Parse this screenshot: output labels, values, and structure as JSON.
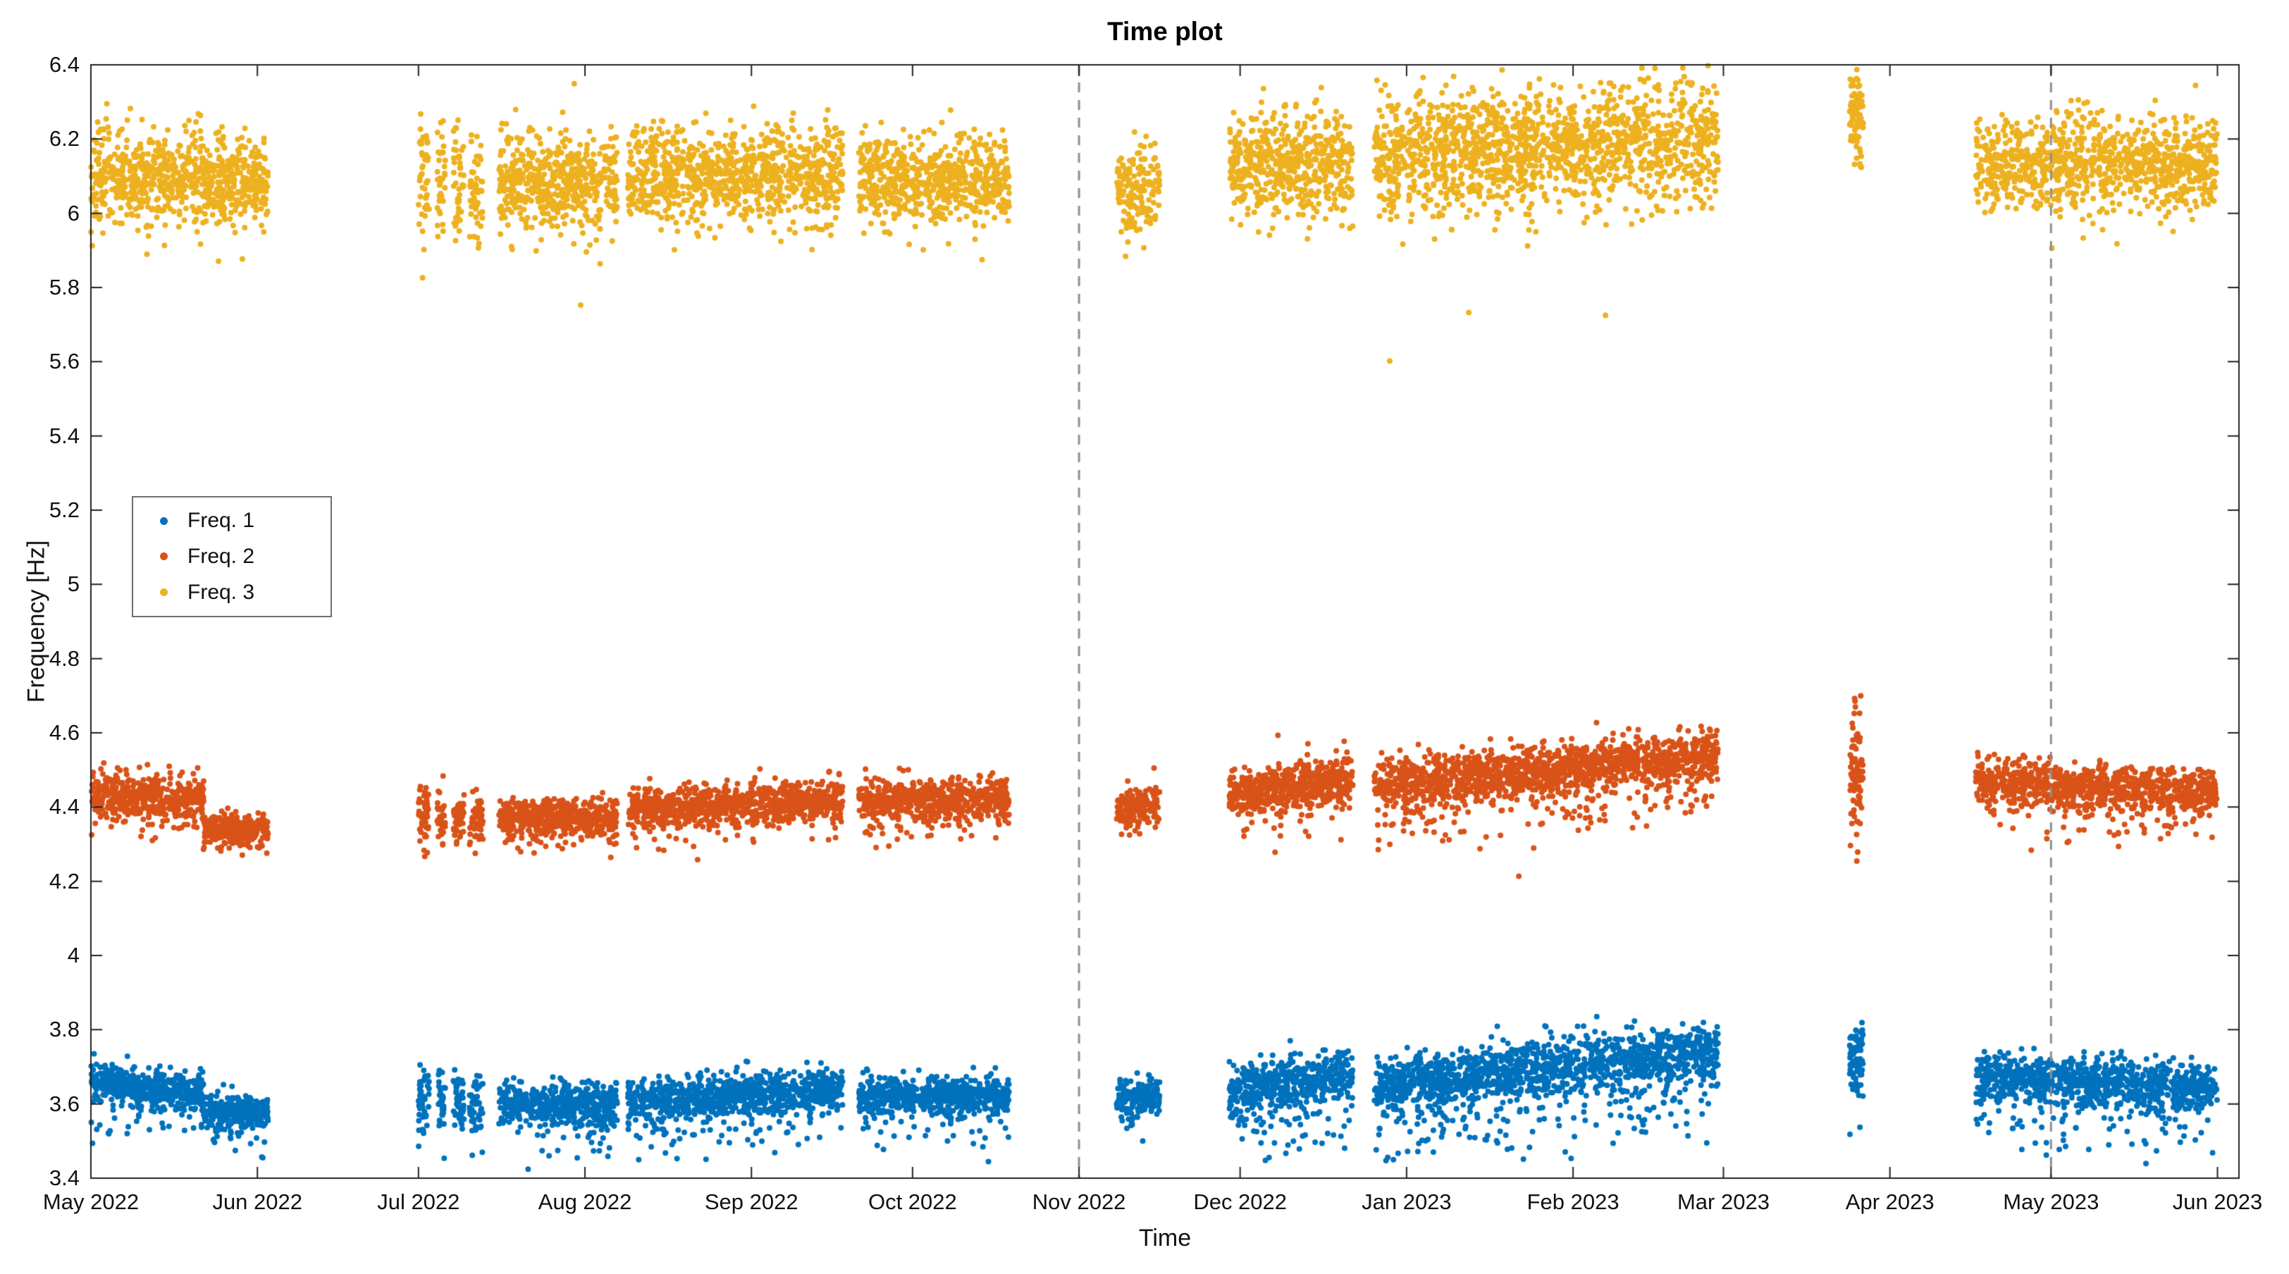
{
  "chart_data": {
    "type": "scatter",
    "title": "Time plot",
    "xlabel": "Time",
    "ylabel": "Frequency [Hz]",
    "background": "#ffffff",
    "grid": false,
    "x_axis": {
      "min": 0,
      "max": 400,
      "unit": "days since 2022-05-01",
      "tick_days": [
        0,
        31,
        61,
        92,
        123,
        153,
        184,
        214,
        245,
        276,
        304,
        335,
        365,
        396
      ],
      "tick_labels": [
        "May 2022",
        "Jun 2022",
        "Jul 2022",
        "Aug 2022",
        "Sep 2022",
        "Oct 2022",
        "Nov 2022",
        "Dec 2022",
        "Jan 2023",
        "Feb 2023",
        "Mar 2023",
        "Apr 2023",
        "May 2023",
        "Jun 2023"
      ]
    },
    "y_axis": {
      "min": 3.4,
      "max": 6.4,
      "tick_step": 0.2,
      "tick_labels": [
        "3.4",
        "3.6",
        "3.8",
        "4",
        "4.2",
        "4.4",
        "4.6",
        "4.8",
        "5",
        "5.2",
        "5.4",
        "5.6",
        "5.8",
        "6",
        "6.2",
        "6.4"
      ]
    },
    "vlines": {
      "style": "dashed",
      "color": "#8f8f8f",
      "days": [
        184,
        365
      ],
      "dates": [
        "2022-11-01",
        "2023-05-01"
      ]
    },
    "legend": {
      "position": "upper-left-inside",
      "entries": [
        "Freq. 1",
        "Freq. 2",
        "Freq. 3"
      ]
    },
    "axis_color": "#222222",
    "series": [
      {
        "name": "Freq. 1",
        "color": "#0072BD",
        "marker": "filled-circle",
        "band_hz": "3.55-3.78",
        "segments": [
          {
            "t0": 0,
            "t1": 21,
            "n": 480,
            "y0": 3.66,
            "y1": 3.63,
            "sd": 0.025,
            "tp": 0.07,
            "td": 0.1
          },
          {
            "t0": 21,
            "t1": 33,
            "n": 300,
            "y0": 3.58,
            "y1": 3.58,
            "sd": 0.022,
            "tp": 0.05,
            "td": 0.08
          },
          {
            "t0": 61,
            "t1": 63,
            "n": 45,
            "y0": 3.62,
            "y1": 3.62,
            "sd": 0.05,
            "tp": 0.05,
            "td": 0.08
          },
          {
            "t0": 64.5,
            "t1": 66,
            "n": 35,
            "y0": 3.61,
            "y1": 3.61,
            "sd": 0.05,
            "tp": 0.05,
            "td": 0.08
          },
          {
            "t0": 67.5,
            "t1": 69.5,
            "n": 45,
            "y0": 3.61,
            "y1": 3.61,
            "sd": 0.045,
            "tp": 0.05,
            "td": 0.08
          },
          {
            "t0": 70.5,
            "t1": 73,
            "n": 50,
            "y0": 3.6,
            "y1": 3.6,
            "sd": 0.045,
            "tp": 0.05,
            "td": 0.08
          },
          {
            "t0": 76,
            "t1": 98,
            "n": 520,
            "y0": 3.6,
            "y1": 3.6,
            "sd": 0.028,
            "tp": 0.07,
            "td": 0.1
          },
          {
            "t0": 100,
            "t1": 140,
            "n": 900,
            "y0": 3.6,
            "y1": 3.64,
            "sd": 0.028,
            "tp": 0.07,
            "td": 0.1
          },
          {
            "t0": 143,
            "t1": 171,
            "n": 650,
            "y0": 3.62,
            "y1": 3.62,
            "sd": 0.026,
            "tp": 0.06,
            "td": 0.1
          },
          {
            "t0": 191,
            "t1": 199,
            "n": 170,
            "y0": 3.62,
            "y1": 3.62,
            "sd": 0.028,
            "tp": 0.05,
            "td": 0.08
          },
          {
            "t0": 212,
            "t1": 235,
            "n": 550,
            "y0": 3.63,
            "y1": 3.68,
            "sd": 0.035,
            "tp": 0.09,
            "td": 0.13
          },
          {
            "t0": 239,
            "t1": 303,
            "n": 1500,
            "y0": 3.65,
            "y1": 3.74,
            "sd": 0.04,
            "tp": 0.1,
            "td": 0.16
          },
          {
            "t0": 327.5,
            "t1": 330,
            "n": 90,
            "y0": 3.72,
            "y1": 3.72,
            "sd": 0.05,
            "tp": 0.06,
            "td": 0.1
          },
          {
            "t0": 351,
            "t1": 396,
            "n": 980,
            "y0": 3.67,
            "y1": 3.64,
            "sd": 0.033,
            "tp": 0.09,
            "td": 0.13
          }
        ]
      },
      {
        "name": "Freq. 2",
        "color": "#D95319",
        "marker": "filled-circle",
        "band_hz": "4.32-4.58",
        "segments": [
          {
            "t0": 0,
            "t1": 21,
            "n": 480,
            "y0": 4.43,
            "y1": 4.42,
            "sd": 0.03,
            "tp": 0.04,
            "td": 0.07
          },
          {
            "t0": 21,
            "t1": 33,
            "n": 300,
            "y0": 4.34,
            "y1": 4.34,
            "sd": 0.02,
            "tp": 0.03,
            "td": 0.05
          },
          {
            "t0": 61,
            "t1": 63,
            "n": 45,
            "y0": 4.38,
            "y1": 4.38,
            "sd": 0.04
          },
          {
            "t0": 64.5,
            "t1": 66,
            "n": 35,
            "y0": 4.37,
            "y1": 4.37,
            "sd": 0.04
          },
          {
            "t0": 67.5,
            "t1": 69.5,
            "n": 45,
            "y0": 4.37,
            "y1": 4.37,
            "sd": 0.035
          },
          {
            "t0": 70.5,
            "t1": 73,
            "n": 50,
            "y0": 4.36,
            "y1": 4.36,
            "sd": 0.035
          },
          {
            "t0": 76,
            "t1": 98,
            "n": 520,
            "y0": 4.37,
            "y1": 4.37,
            "sd": 0.026,
            "tp": 0.05,
            "td": 0.07
          },
          {
            "t0": 100,
            "t1": 140,
            "n": 900,
            "y0": 4.39,
            "y1": 4.42,
            "sd": 0.028,
            "tp": 0.05,
            "td": 0.08,
            "up": 0.002,
            "ud": 0.13
          },
          {
            "t0": 143,
            "t1": 171,
            "n": 650,
            "y0": 4.42,
            "y1": 4.42,
            "sd": 0.028,
            "tp": 0.05,
            "td": 0.08
          },
          {
            "t0": 191,
            "t1": 199,
            "n": 170,
            "y0": 4.4,
            "y1": 4.4,
            "sd": 0.026
          },
          {
            "t0": 212,
            "t1": 235,
            "n": 550,
            "y0": 4.43,
            "y1": 4.48,
            "sd": 0.03,
            "tp": 0.06,
            "td": 0.1,
            "up": 0.004,
            "ud": 0.14
          },
          {
            "t0": 239,
            "t1": 303,
            "n": 1500,
            "y0": 4.46,
            "y1": 4.54,
            "sd": 0.034,
            "tp": 0.08,
            "td": 0.13
          },
          {
            "t0": 327.5,
            "t1": 330,
            "n": 90,
            "y0": 4.48,
            "y1": 4.48,
            "sd": 0.085
          },
          {
            "t0": 351,
            "t1": 396,
            "n": 980,
            "y0": 4.47,
            "y1": 4.44,
            "sd": 0.03,
            "tp": 0.07,
            "td": 0.1
          }
        ]
      },
      {
        "name": "Freq. 3",
        "color": "#EDB120",
        "marker": "filled-circle",
        "band_hz": "5.95-6.35",
        "segments": [
          {
            "t0": 0,
            "t1": 21,
            "n": 480,
            "y0": 6.1,
            "y1": 6.1,
            "sd": 0.065,
            "tp": 0.03,
            "td": 0.12
          },
          {
            "t0": 21,
            "t1": 33,
            "n": 300,
            "y0": 6.08,
            "y1": 6.08,
            "sd": 0.06
          },
          {
            "t0": 61,
            "t1": 63,
            "n": 45,
            "y0": 6.09,
            "y1": 6.09,
            "sd": 0.08
          },
          {
            "t0": 64.5,
            "t1": 66,
            "n": 35,
            "y0": 6.09,
            "y1": 6.09,
            "sd": 0.08
          },
          {
            "t0": 67.5,
            "t1": 69.5,
            "n": 45,
            "y0": 6.08,
            "y1": 6.08,
            "sd": 0.075
          },
          {
            "t0": 70.5,
            "t1": 73,
            "n": 50,
            "y0": 6.07,
            "y1": 6.07,
            "sd": 0.075
          },
          {
            "t0": 76,
            "t1": 98,
            "n": 520,
            "y0": 6.08,
            "y1": 6.08,
            "sd": 0.068,
            "tp": 0.004,
            "td": 0.24
          },
          {
            "t0": 100,
            "t1": 140,
            "n": 900,
            "y0": 6.1,
            "y1": 6.1,
            "sd": 0.065
          },
          {
            "t0": 143,
            "t1": 171,
            "n": 650,
            "y0": 6.09,
            "y1": 6.09,
            "sd": 0.062
          },
          {
            "t0": 191,
            "t1": 199,
            "n": 170,
            "y0": 6.07,
            "y1": 6.07,
            "sd": 0.06
          },
          {
            "t0": 212,
            "t1": 235,
            "n": 550,
            "y0": 6.13,
            "y1": 6.14,
            "sd": 0.07
          },
          {
            "t0": 239,
            "t1": 303,
            "n": 1500,
            "y0": 6.15,
            "y1": 6.2,
            "sd": 0.08,
            "tp": 0.004,
            "td": 0.45
          },
          {
            "t0": 327.5,
            "t1": 330,
            "n": 90,
            "y0": 6.27,
            "y1": 6.27,
            "sd": 0.055
          },
          {
            "t0": 351,
            "t1": 396,
            "n": 980,
            "y0": 6.13,
            "y1": 6.13,
            "sd": 0.062
          }
        ]
      }
    ]
  }
}
